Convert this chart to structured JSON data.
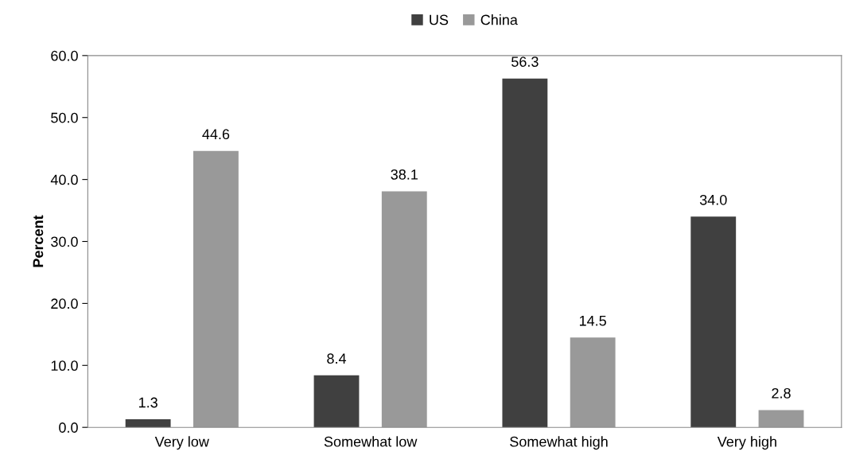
{
  "chart_data": {
    "type": "bar",
    "ylabel": "Percent",
    "categories": [
      "Very low",
      "Somewhat low",
      "Somewhat high",
      "Very high"
    ],
    "series": [
      {
        "name": "US",
        "color": "#404040",
        "values": [
          1.3,
          8.4,
          56.3,
          34.0
        ],
        "value_labels": [
          "1.3",
          "8.4",
          "56.3",
          "34.0"
        ]
      },
      {
        "name": "China",
        "color": "#999999",
        "values": [
          44.6,
          38.1,
          14.5,
          2.8
        ],
        "value_labels": [
          "44.6",
          "38.1",
          "14.5",
          "2.8"
        ]
      }
    ],
    "ylim": [
      0,
      60
    ],
    "yticks": [
      {
        "value": 0,
        "label": "0.0"
      },
      {
        "value": 10,
        "label": "10.0"
      },
      {
        "value": 20,
        "label": "20.0"
      },
      {
        "value": 30,
        "label": "30.0"
      },
      {
        "value": 40,
        "label": "40.0"
      },
      {
        "value": 50,
        "label": "50.0"
      },
      {
        "value": 60,
        "label": "60.0"
      }
    ],
    "grid": false,
    "legend": "top"
  }
}
